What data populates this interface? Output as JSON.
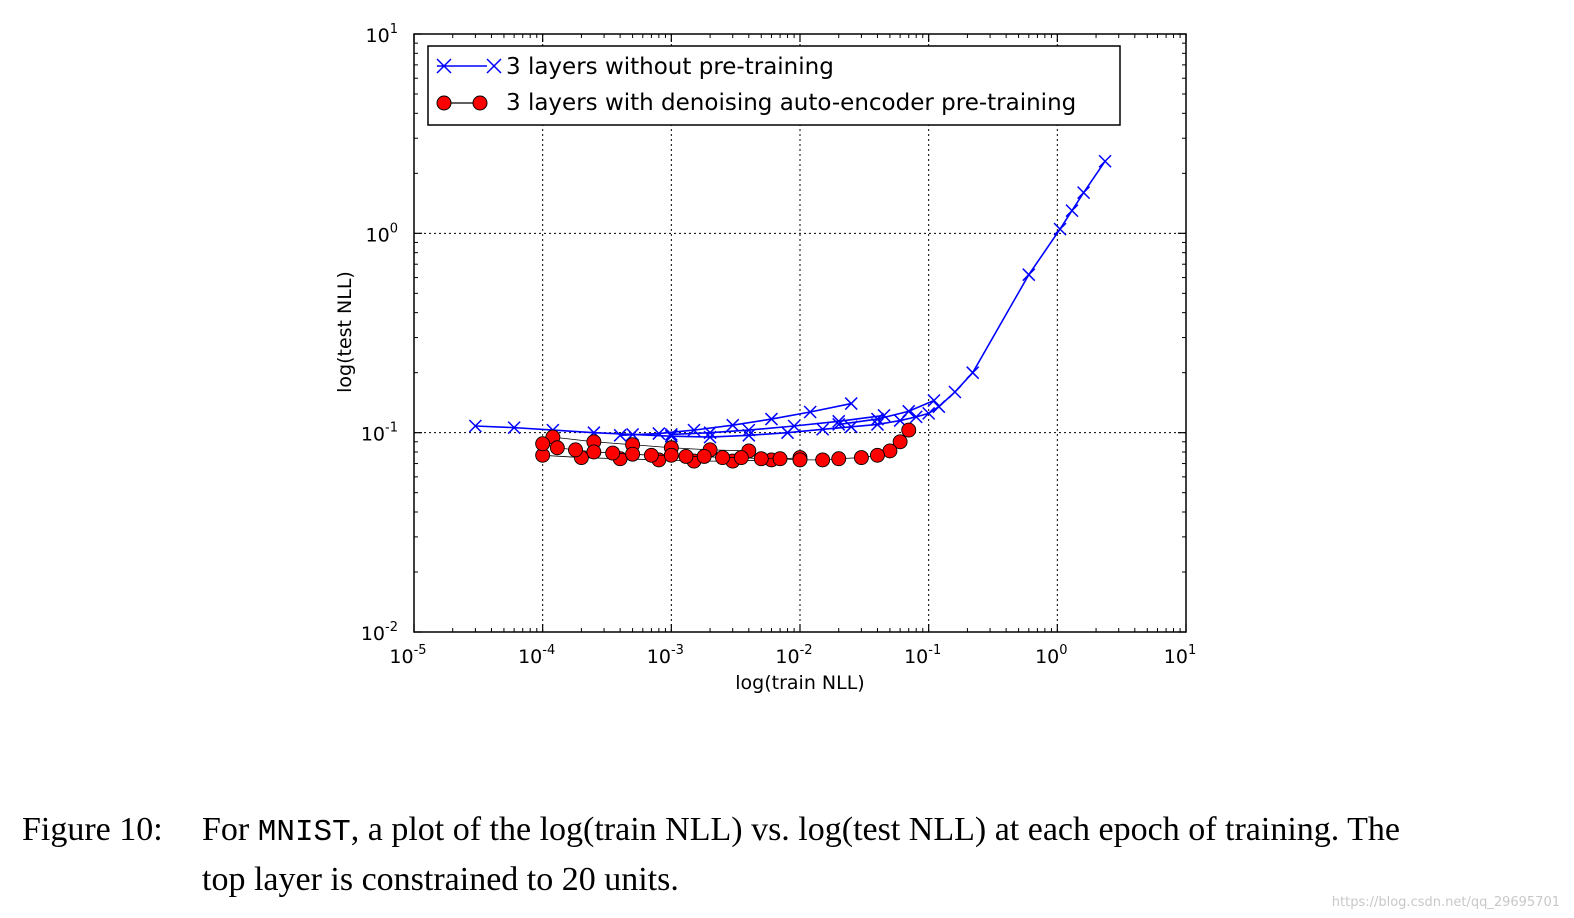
{
  "chart_data": {
    "type": "line",
    "xscale": "log",
    "yscale": "log",
    "xlabel": "log(train NLL)",
    "ylabel": "log(test NLL)",
    "xlim": [
      1e-05,
      10
    ],
    "ylim": [
      0.01,
      10
    ],
    "grid": true,
    "legend_position": "top-left",
    "x_ticks": [
      {
        "base": "10",
        "exp": "-5",
        "value": 1e-05
      },
      {
        "base": "10",
        "exp": "-4",
        "value": 0.0001
      },
      {
        "base": "10",
        "exp": "-3",
        "value": 0.001
      },
      {
        "base": "10",
        "exp": "-2",
        "value": 0.01
      },
      {
        "base": "10",
        "exp": "-1",
        "value": 0.1
      },
      {
        "base": "10",
        "exp": "0",
        "value": 1
      },
      {
        "base": "10",
        "exp": "1",
        "value": 10
      }
    ],
    "y_ticks": [
      {
        "base": "10",
        "exp": "-2",
        "value": 0.01
      },
      {
        "base": "10",
        "exp": "-1",
        "value": 0.1
      },
      {
        "base": "10",
        "exp": "0",
        "value": 1
      },
      {
        "base": "10",
        "exp": "1",
        "value": 10
      }
    ],
    "series": [
      {
        "name": "3 layers without pre-training",
        "color": "#0000ff",
        "marker": "x",
        "x": [
          2.35,
          1.6,
          1.3,
          1.05,
          0.6,
          0.22,
          0.16,
          0.12,
          0.1,
          0.08,
          0.06,
          0.04,
          0.025,
          0.015,
          0.008,
          0.004,
          0.002,
          0.001,
          0.0005,
          0.00025,
          0.00012,
          6e-05,
          3e-05
        ],
        "y": [
          2.3,
          1.6,
          1.3,
          1.05,
          0.62,
          0.2,
          0.16,
          0.135,
          0.125,
          0.12,
          0.115,
          0.11,
          0.107,
          0.104,
          0.1,
          0.097,
          0.095,
          0.096,
          0.098,
          0.1,
          0.103,
          0.106,
          0.108
        ],
        "extra_sweeps": [
          {
            "x": [
              0.025,
              0.012,
              0.006,
              0.003,
              0.0015,
              0.0008,
              0.0004
            ],
            "y": [
              0.14,
              0.127,
              0.117,
              0.109,
              0.103,
              0.099,
              0.097
            ]
          },
          {
            "x": [
              0.045,
              0.02,
              0.009,
              0.004,
              0.002,
              0.001
            ],
            "y": [
              0.122,
              0.114,
              0.108,
              0.103,
              0.1,
              0.098
            ]
          },
          {
            "x": [
              0.11,
              0.07,
              0.04,
              0.02
            ],
            "y": [
              0.145,
              0.128,
              0.117,
              0.11
            ]
          }
        ]
      },
      {
        "name": "3 layers with denoising auto-encoder pre-training",
        "color": "#ff0000",
        "marker": "o",
        "x": [
          0.07,
          0.06,
          0.05,
          0.04,
          0.03,
          0.02,
          0.015,
          0.01,
          0.007,
          0.005,
          0.0035,
          0.0025,
          0.0018,
          0.0013,
          0.001,
          0.0007,
          0.0005,
          0.00035,
          0.00025,
          0.00018,
          0.00013,
          0.0001
        ],
        "y": [
          0.103,
          0.09,
          0.081,
          0.077,
          0.075,
          0.074,
          0.073,
          0.073,
          0.074,
          0.074,
          0.075,
          0.075,
          0.076,
          0.076,
          0.077,
          0.077,
          0.078,
          0.079,
          0.08,
          0.082,
          0.084,
          0.088
        ],
        "extra_sweeps": [
          {
            "x": [
              0.01,
              0.006,
              0.003,
              0.0015,
              0.0008,
              0.0004,
              0.0002,
              0.0001
            ],
            "y": [
              0.075,
              0.073,
              0.072,
              0.072,
              0.073,
              0.074,
              0.075,
              0.077
            ]
          },
          {
            "x": [
              0.004,
              0.002,
              0.001,
              0.0005,
              0.00025,
              0.00012
            ],
            "y": [
              0.081,
              0.082,
              0.084,
              0.087,
              0.09,
              0.095
            ]
          }
        ]
      }
    ]
  },
  "caption": {
    "label": "Figure 10:",
    "pre": "For ",
    "code": "MNIST",
    "post": ", a plot of the log(train NLL) vs. log(test NLL) at each epoch of training. The",
    "line2": "top layer is constrained to 20 units."
  },
  "watermark": "https://blog.csdn.net/qq_29695701"
}
